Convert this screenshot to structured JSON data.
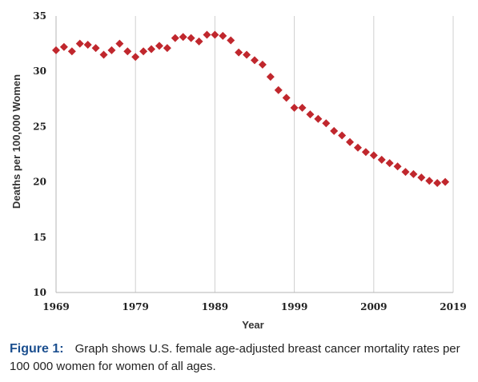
{
  "chart_data": {
    "type": "scatter",
    "xlabel": "Year",
    "ylabel": "Deaths per 100,000 Women",
    "xlim": [
      1969,
      2019
    ],
    "ylim": [
      10,
      35
    ],
    "x_ticks": [
      "1969",
      "1979",
      "1989",
      "1999",
      "2009",
      "2019"
    ],
    "y_ticks": [
      "10",
      "15",
      "20",
      "25",
      "30",
      "35"
    ],
    "grid": "vertical",
    "marker_color": "#c0272d",
    "marker_shape": "diamond",
    "series": [
      {
        "x": [
          1969,
          1970,
          1971,
          1972,
          1973,
          1974,
          1975,
          1976,
          1977,
          1978,
          1979,
          1980,
          1981,
          1982,
          1983,
          1984,
          1985,
          1986,
          1987,
          1988,
          1989,
          1990,
          1991,
          1992,
          1993,
          1994,
          1995,
          1996,
          1997,
          1998,
          1999,
          2000,
          2001,
          2002,
          2003,
          2004,
          2005,
          2006,
          2007,
          2008,
          2009,
          2010,
          2011,
          2012,
          2013,
          2014,
          2015,
          2016,
          2017,
          2018
        ],
        "y": [
          31.9,
          32.2,
          31.8,
          32.5,
          32.4,
          32.1,
          31.5,
          31.9,
          32.5,
          31.8,
          31.3,
          31.8,
          32.0,
          32.3,
          32.1,
          33.0,
          33.1,
          33.0,
          32.7,
          33.3,
          33.3,
          33.2,
          32.8,
          31.7,
          31.5,
          31.0,
          30.6,
          29.5,
          28.3,
          27.6,
          26.7,
          26.7,
          26.1,
          25.7,
          25.3,
          24.6,
          24.2,
          23.6,
          23.1,
          22.7,
          22.4,
          22.0,
          21.7,
          21.4,
          20.9,
          20.7,
          20.4,
          20.1,
          19.9,
          20.0
        ]
      }
    ]
  },
  "caption": {
    "label": "Figure 1:",
    "text": "Graph shows U.S. female age-adjusted breast cancer mortality rates per 100 000 women for women of all ages."
  }
}
